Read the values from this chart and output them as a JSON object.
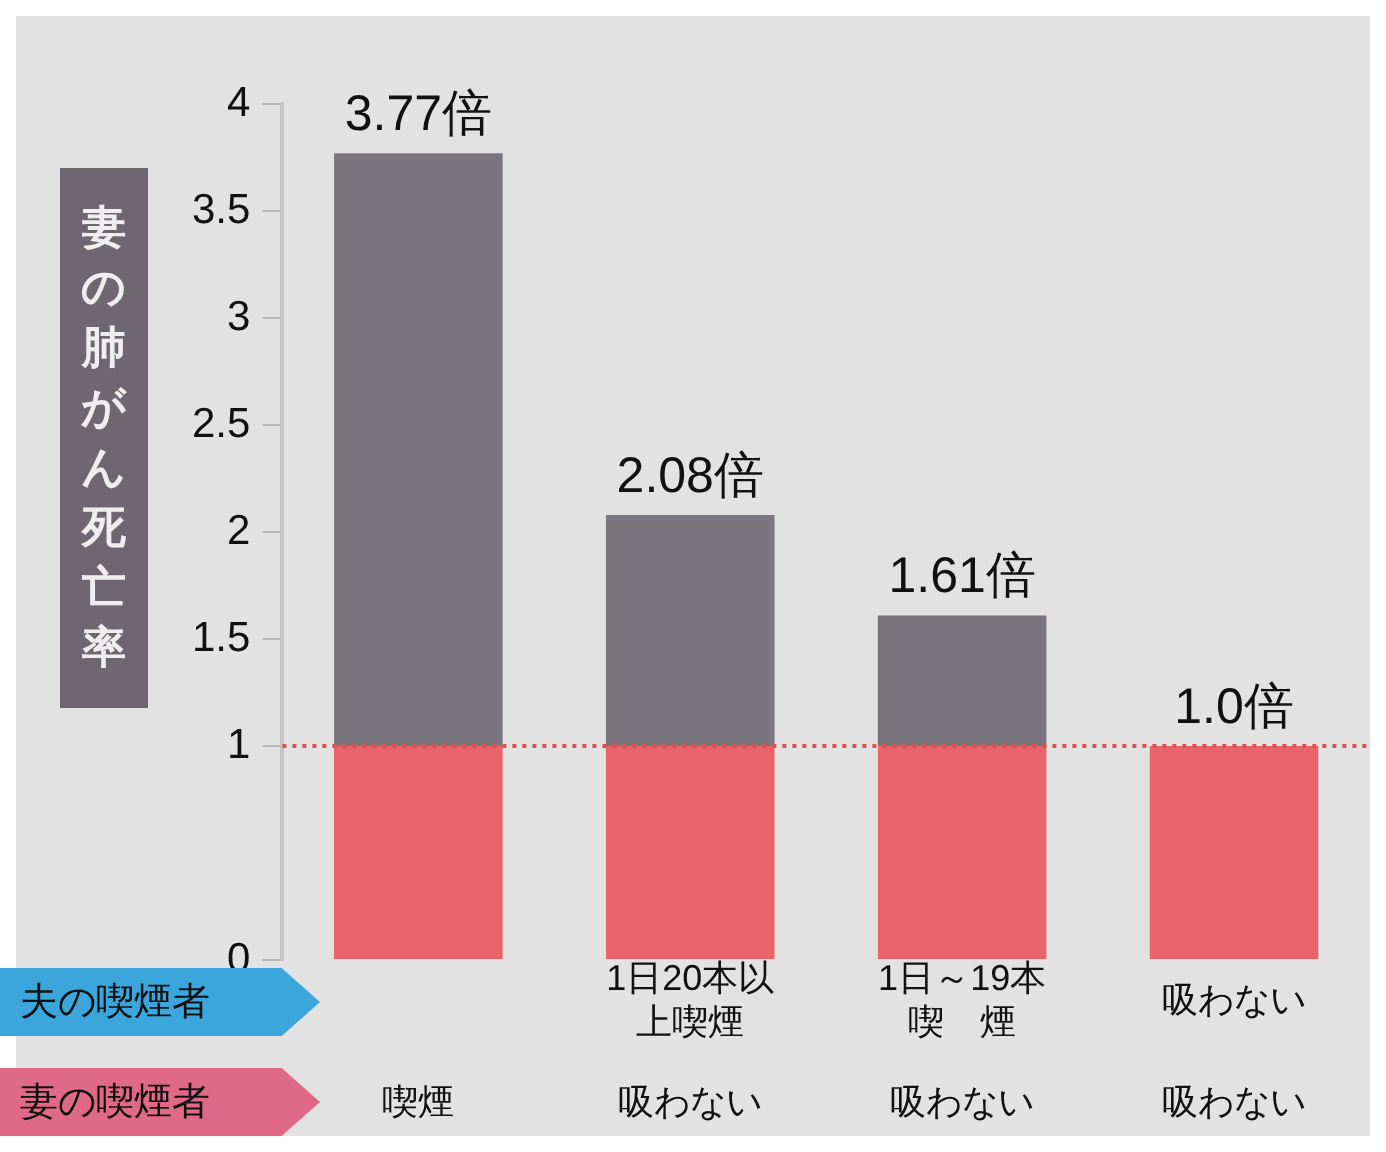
{
  "chart_data": {
    "type": "bar",
    "stacked": true,
    "ylabel": "妻の肺がん死亡率",
    "categories": [
      null,
      "1日20本以上喫煙",
      "1日～19本喫　煙",
      "吸わない"
    ],
    "series": [
      {
        "color": "#e8646a",
        "values": [
          1,
          1,
          1,
          1
        ]
      },
      {
        "color": "#7b767e",
        "values": [
          2.77,
          1.08,
          0.61,
          0
        ]
      }
    ],
    "totals": [
      "3.77倍",
      "2.08倍",
      "1.61倍",
      "1.0倍"
    ],
    "ylim": [
      0,
      4
    ],
    "yticks": [
      0,
      1,
      1.5,
      2,
      2.5,
      3,
      3.5,
      4
    ],
    "ref_lines": [
      {
        "axis": "y",
        "value": 1,
        "color": "#d9534f",
        "line_style": "dotted"
      }
    ],
    "annotations": [
      "夫の喫煙者",
      "妻の喫煙者",
      "喫煙",
      "吸わない",
      "吸わない",
      "吸わない"
    ],
    "grid": false,
    "legend": false
  }
}
